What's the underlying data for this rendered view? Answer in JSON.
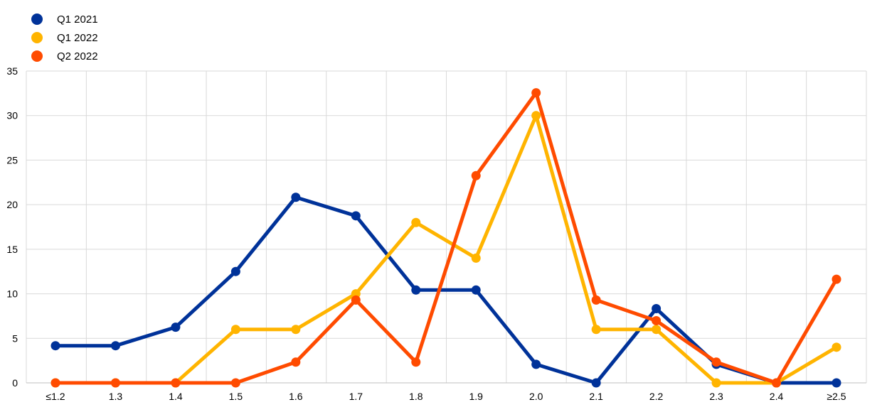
{
  "chart_data": {
    "type": "line",
    "title": "",
    "xlabel": "",
    "ylabel": "",
    "categories": [
      "≤1.2",
      "1.3",
      "1.4",
      "1.5",
      "1.6",
      "1.7",
      "1.8",
      "1.9",
      "2.0",
      "2.1",
      "2.2",
      "2.3",
      "2.4",
      "≥2.5"
    ],
    "ylim": [
      0,
      35
    ],
    "yticks": [
      0,
      5,
      10,
      15,
      20,
      25,
      30,
      35
    ],
    "grid": true,
    "legend_position": "top-left",
    "series": [
      {
        "name": "Q1 2021",
        "color": "#003299",
        "values": [
          4.17,
          4.17,
          6.25,
          12.5,
          20.83,
          18.75,
          10.42,
          10.42,
          2.08,
          0,
          8.33,
          2.08,
          0,
          0
        ]
      },
      {
        "name": "Q1 2022",
        "color": "#FFB400",
        "values": [
          0,
          0,
          0,
          6,
          6,
          10,
          18,
          14,
          30,
          6,
          6,
          0,
          0,
          4
        ]
      },
      {
        "name": "Q2 2022",
        "color": "#FF4B00",
        "values": [
          0,
          0,
          0,
          0,
          2.33,
          9.3,
          2.33,
          23.26,
          32.56,
          9.3,
          6.98,
          2.33,
          0,
          11.63
        ]
      }
    ]
  }
}
